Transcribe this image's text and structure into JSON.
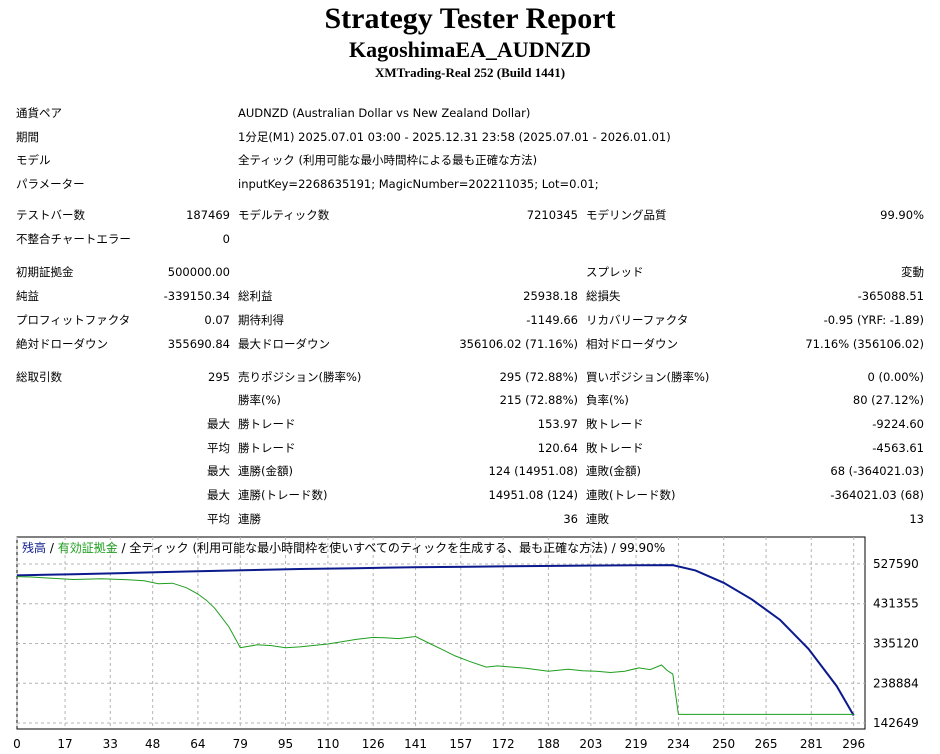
{
  "header": {
    "title": "Strategy Tester Report",
    "ea_symbol": "KagoshimaEA_AUDNZD",
    "server": "XMTrading-Real 252 (Build 1441)"
  },
  "info": {
    "symbol_label": "通貨ペア",
    "symbol": "AUDNZD (Australian Dollar vs New Zealand Dollar)",
    "period_label": "期間",
    "period": "1分足(M1) 2025.07.01 03:00 - 2025.12.31 23:58 (2025.07.01 - 2026.01.01)",
    "model_label": "モデル",
    "model": "全ティック (利用可能な最小時間枠による最も正確な方法)",
    "params_label": "パラメーター",
    "params": "inputKey=2268635191; MagicNumber=202211035; Lot=0.01;"
  },
  "stats": {
    "bars_label": "テストバー数",
    "bars": "187469",
    "ticks_label": "モデルティック数",
    "ticks": "7210345",
    "quality_label": "モデリング品質",
    "quality": "99.90%",
    "mismatch_label": "不整合チャートエラー",
    "mismatch": "0",
    "deposit_label": "初期証拠金",
    "deposit": "500000.00",
    "spread_label": "スプレッド",
    "spread": "変動",
    "net_label": "純益",
    "net": "-339150.34",
    "gross_profit_label": "総利益",
    "gross_profit": "25938.18",
    "gross_loss_label": "総損失",
    "gross_loss": "-365088.51",
    "pf_label": "プロフィットファクタ",
    "pf": "0.07",
    "expected_label": "期待利得",
    "expected": "-1149.66",
    "recovery_label": "リカバリーファクタ",
    "recovery": "-0.95 (YRF: -1.89)",
    "abs_dd_label": "絶対ドローダウン",
    "abs_dd": "355690.84",
    "max_dd_label": "最大ドローダウン",
    "max_dd": "356106.02 (71.16%)",
    "rel_dd_label": "相対ドローダウン",
    "rel_dd": "71.16% (356106.02)",
    "trades_label": "総取引数",
    "trades": "295",
    "short_label": "売りポジション(勝率%)",
    "short": "295 (72.88%)",
    "long_label": "買いポジション(勝率%)",
    "long": "0 (0.00%)",
    "win_label": "勝率(%)",
    "win": "215 (72.88%)",
    "loss_label": "負率(%)",
    "loss": "80 (27.12%)",
    "max_word": "最大",
    "avg_word": "平均",
    "largest_win_label": "勝トレード",
    "largest_win": "153.97",
    "largest_loss_label": "敗トレード",
    "largest_loss": "-9224.60",
    "avg_win_label": "勝トレード",
    "avg_win": "120.64",
    "avg_loss_label": "敗トレード",
    "avg_loss": "-4563.61",
    "max_cons_win_amt_label": "連勝(金額)",
    "max_cons_win_amt": "124 (14951.08)",
    "max_cons_loss_amt_label": "連敗(金額)",
    "max_cons_loss_amt": "68 (-364021.03)",
    "max_cons_win_cnt_label": "連勝(トレード数)",
    "max_cons_win_cnt": "14951.08 (124)",
    "max_cons_loss_cnt_label": "連敗(トレード数)",
    "max_cons_loss_cnt": "-364021.03 (68)",
    "avg_cons_win_label": "連勝",
    "avg_cons_win": "36",
    "avg_cons_loss_label": "連敗",
    "avg_cons_loss": "13"
  },
  "legend": {
    "balance": "残高",
    "sep1": " / ",
    "equity": "有効証拠金",
    "rest": " / 全ティック (利用可能な最小時間枠を使いすべてのティックを生成する、最も正確な方法) / 99.90%"
  },
  "colors": {
    "balance": "#0b1a8c",
    "equity": "#1e9e1e",
    "grid": "#b4b4b4"
  },
  "chart_data": {
    "type": "line",
    "xlabel": "",
    "ylabel": "",
    "xlim": [
      0,
      300
    ],
    "ylim": [
      142649,
      527590
    ],
    "grid": true,
    "x_ticks": [
      0,
      17,
      33,
      48,
      64,
      79,
      95,
      110,
      126,
      141,
      157,
      172,
      188,
      203,
      219,
      234,
      250,
      265,
      281,
      296
    ],
    "y_ticks": [
      527590,
      431355,
      335120,
      238884,
      142649
    ],
    "series": [
      {
        "name": "残高",
        "x": [
          0,
          10,
          20,
          40,
          60,
          80,
          100,
          120,
          140,
          160,
          180,
          200,
          220,
          232,
          240,
          250,
          260,
          270,
          280,
          290,
          296
        ],
        "y": [
          500000,
          501500,
          503000,
          506000,
          509500,
          512500,
          515500,
          517500,
          519500,
          521000,
          522500,
          523800,
          524600,
          525000,
          512000,
          482000,
          442000,
          392000,
          322000,
          232000,
          160850
        ]
      },
      {
        "name": "有効証拠金",
        "x": [
          0,
          5,
          10,
          20,
          30,
          40,
          45,
          50,
          55,
          60,
          64,
          67,
          70,
          75,
          79,
          85,
          90,
          95,
          100,
          110,
          120,
          126,
          130,
          135,
          141,
          146,
          150,
          155,
          160,
          166,
          170,
          180,
          188,
          195,
          200,
          205,
          210,
          215,
          220,
          224,
          228,
          230,
          232,
          234,
          250,
          265,
          281,
          296
        ],
        "y": [
          497000,
          496000,
          494000,
          490000,
          492000,
          489000,
          487000,
          480000,
          481000,
          470000,
          455000,
          440000,
          420000,
          375000,
          325000,
          332000,
          330000,
          325000,
          327000,
          334000,
          345000,
          350000,
          349000,
          347000,
          352000,
          335000,
          322000,
          305000,
          292000,
          278000,
          281000,
          275000,
          268000,
          273000,
          269000,
          268000,
          265000,
          268000,
          276000,
          272000,
          283000,
          270000,
          261000,
          163500,
          163500,
          163500,
          163500,
          163500
        ]
      }
    ]
  }
}
